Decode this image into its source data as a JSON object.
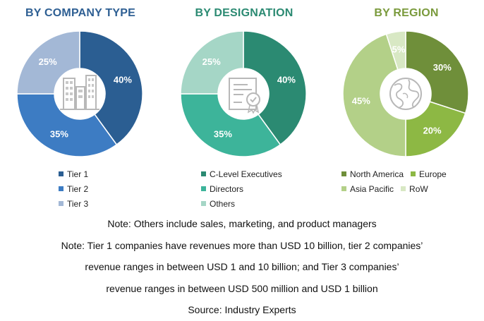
{
  "chart_data": [
    {
      "type": "pie",
      "title": "BY COMPANY TYPE",
      "categories": [
        "Tier 1",
        "Tier 2",
        "Tier 3"
      ],
      "values": [
        40,
        35,
        25
      ],
      "labels": [
        "40%",
        "35%",
        "25%"
      ],
      "colors": [
        "#2b5e92",
        "#3d7cc3",
        "#a3b8d6"
      ],
      "title_color": "#2e5f93",
      "center_icon": "office-buildings-icon"
    },
    {
      "type": "pie",
      "title": "BY DESIGNATION",
      "categories": [
        "C-Level Executives",
        "Directors",
        "Others"
      ],
      "values": [
        40,
        35,
        25
      ],
      "labels": [
        "40%",
        "35%",
        "25%"
      ],
      "colors": [
        "#2b8a72",
        "#3db49a",
        "#a5d6c6"
      ],
      "title_color": "#2b8a72",
      "center_icon": "certificate-icon"
    },
    {
      "type": "pie",
      "title": "BY REGION",
      "categories": [
        "North America",
        "Europe",
        "Asia Pacific",
        "RoW"
      ],
      "values": [
        30,
        20,
        45,
        5
      ],
      "labels": [
        "30%",
        "20%",
        "45%",
        "5%"
      ],
      "colors": [
        "#6f8f3a",
        "#8db844",
        "#b3d088",
        "#d8e8c4"
      ],
      "title_color": "#7a9a3c",
      "center_icon": "globe-icon"
    }
  ],
  "notes": [
    "Note: Others include sales, marketing, and product managers",
    "Note: Tier 1 companies have revenues more than USD 10 billion, tier 2 companies’",
    "revenue ranges in between USD 1 and 10 billion; and Tier 3 companies’",
    "revenue ranges in between USD 500 million and USD 1 billion",
    "Source: Industry Experts"
  ]
}
